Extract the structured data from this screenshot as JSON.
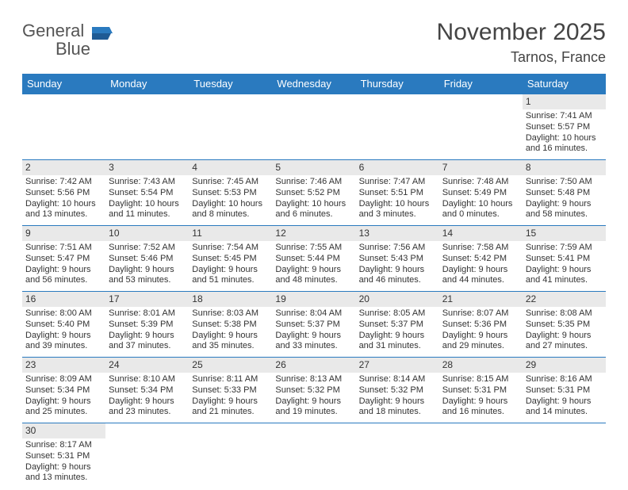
{
  "logo": {
    "word1": "General",
    "word2": "Blue"
  },
  "title": "November 2025",
  "location": "Tarnos, France",
  "weekdays": [
    "Sunday",
    "Monday",
    "Tuesday",
    "Wednesday",
    "Thursday",
    "Friday",
    "Saturday"
  ],
  "colors": {
    "header_bg": "#2a7abf",
    "header_text": "#ffffff",
    "daynum_bg": "#e9e9e9",
    "border": "#2a7abf",
    "text": "#333333",
    "logo_gray": "#555555",
    "logo_blue": "#2a7abf"
  },
  "weeks": [
    [
      null,
      null,
      null,
      null,
      null,
      null,
      {
        "n": "1",
        "sunrise": "Sunrise: 7:41 AM",
        "sunset": "Sunset: 5:57 PM",
        "day1": "Daylight: 10 hours",
        "day2": "and 16 minutes."
      }
    ],
    [
      {
        "n": "2",
        "sunrise": "Sunrise: 7:42 AM",
        "sunset": "Sunset: 5:56 PM",
        "day1": "Daylight: 10 hours",
        "day2": "and 13 minutes."
      },
      {
        "n": "3",
        "sunrise": "Sunrise: 7:43 AM",
        "sunset": "Sunset: 5:54 PM",
        "day1": "Daylight: 10 hours",
        "day2": "and 11 minutes."
      },
      {
        "n": "4",
        "sunrise": "Sunrise: 7:45 AM",
        "sunset": "Sunset: 5:53 PM",
        "day1": "Daylight: 10 hours",
        "day2": "and 8 minutes."
      },
      {
        "n": "5",
        "sunrise": "Sunrise: 7:46 AM",
        "sunset": "Sunset: 5:52 PM",
        "day1": "Daylight: 10 hours",
        "day2": "and 6 minutes."
      },
      {
        "n": "6",
        "sunrise": "Sunrise: 7:47 AM",
        "sunset": "Sunset: 5:51 PM",
        "day1": "Daylight: 10 hours",
        "day2": "and 3 minutes."
      },
      {
        "n": "7",
        "sunrise": "Sunrise: 7:48 AM",
        "sunset": "Sunset: 5:49 PM",
        "day1": "Daylight: 10 hours",
        "day2": "and 0 minutes."
      },
      {
        "n": "8",
        "sunrise": "Sunrise: 7:50 AM",
        "sunset": "Sunset: 5:48 PM",
        "day1": "Daylight: 9 hours",
        "day2": "and 58 minutes."
      }
    ],
    [
      {
        "n": "9",
        "sunrise": "Sunrise: 7:51 AM",
        "sunset": "Sunset: 5:47 PM",
        "day1": "Daylight: 9 hours",
        "day2": "and 56 minutes."
      },
      {
        "n": "10",
        "sunrise": "Sunrise: 7:52 AM",
        "sunset": "Sunset: 5:46 PM",
        "day1": "Daylight: 9 hours",
        "day2": "and 53 minutes."
      },
      {
        "n": "11",
        "sunrise": "Sunrise: 7:54 AM",
        "sunset": "Sunset: 5:45 PM",
        "day1": "Daylight: 9 hours",
        "day2": "and 51 minutes."
      },
      {
        "n": "12",
        "sunrise": "Sunrise: 7:55 AM",
        "sunset": "Sunset: 5:44 PM",
        "day1": "Daylight: 9 hours",
        "day2": "and 48 minutes."
      },
      {
        "n": "13",
        "sunrise": "Sunrise: 7:56 AM",
        "sunset": "Sunset: 5:43 PM",
        "day1": "Daylight: 9 hours",
        "day2": "and 46 minutes."
      },
      {
        "n": "14",
        "sunrise": "Sunrise: 7:58 AM",
        "sunset": "Sunset: 5:42 PM",
        "day1": "Daylight: 9 hours",
        "day2": "and 44 minutes."
      },
      {
        "n": "15",
        "sunrise": "Sunrise: 7:59 AM",
        "sunset": "Sunset: 5:41 PM",
        "day1": "Daylight: 9 hours",
        "day2": "and 41 minutes."
      }
    ],
    [
      {
        "n": "16",
        "sunrise": "Sunrise: 8:00 AM",
        "sunset": "Sunset: 5:40 PM",
        "day1": "Daylight: 9 hours",
        "day2": "and 39 minutes."
      },
      {
        "n": "17",
        "sunrise": "Sunrise: 8:01 AM",
        "sunset": "Sunset: 5:39 PM",
        "day1": "Daylight: 9 hours",
        "day2": "and 37 minutes."
      },
      {
        "n": "18",
        "sunrise": "Sunrise: 8:03 AM",
        "sunset": "Sunset: 5:38 PM",
        "day1": "Daylight: 9 hours",
        "day2": "and 35 minutes."
      },
      {
        "n": "19",
        "sunrise": "Sunrise: 8:04 AM",
        "sunset": "Sunset: 5:37 PM",
        "day1": "Daylight: 9 hours",
        "day2": "and 33 minutes."
      },
      {
        "n": "20",
        "sunrise": "Sunrise: 8:05 AM",
        "sunset": "Sunset: 5:37 PM",
        "day1": "Daylight: 9 hours",
        "day2": "and 31 minutes."
      },
      {
        "n": "21",
        "sunrise": "Sunrise: 8:07 AM",
        "sunset": "Sunset: 5:36 PM",
        "day1": "Daylight: 9 hours",
        "day2": "and 29 minutes."
      },
      {
        "n": "22",
        "sunrise": "Sunrise: 8:08 AM",
        "sunset": "Sunset: 5:35 PM",
        "day1": "Daylight: 9 hours",
        "day2": "and 27 minutes."
      }
    ],
    [
      {
        "n": "23",
        "sunrise": "Sunrise: 8:09 AM",
        "sunset": "Sunset: 5:34 PM",
        "day1": "Daylight: 9 hours",
        "day2": "and 25 minutes."
      },
      {
        "n": "24",
        "sunrise": "Sunrise: 8:10 AM",
        "sunset": "Sunset: 5:34 PM",
        "day1": "Daylight: 9 hours",
        "day2": "and 23 minutes."
      },
      {
        "n": "25",
        "sunrise": "Sunrise: 8:11 AM",
        "sunset": "Sunset: 5:33 PM",
        "day1": "Daylight: 9 hours",
        "day2": "and 21 minutes."
      },
      {
        "n": "26",
        "sunrise": "Sunrise: 8:13 AM",
        "sunset": "Sunset: 5:32 PM",
        "day1": "Daylight: 9 hours",
        "day2": "and 19 minutes."
      },
      {
        "n": "27",
        "sunrise": "Sunrise: 8:14 AM",
        "sunset": "Sunset: 5:32 PM",
        "day1": "Daylight: 9 hours",
        "day2": "and 18 minutes."
      },
      {
        "n": "28",
        "sunrise": "Sunrise: 8:15 AM",
        "sunset": "Sunset: 5:31 PM",
        "day1": "Daylight: 9 hours",
        "day2": "and 16 minutes."
      },
      {
        "n": "29",
        "sunrise": "Sunrise: 8:16 AM",
        "sunset": "Sunset: 5:31 PM",
        "day1": "Daylight: 9 hours",
        "day2": "and 14 minutes."
      }
    ],
    [
      {
        "n": "30",
        "sunrise": "Sunrise: 8:17 AM",
        "sunset": "Sunset: 5:31 PM",
        "day1": "Daylight: 9 hours",
        "day2": "and 13 minutes."
      },
      null,
      null,
      null,
      null,
      null,
      null
    ]
  ]
}
